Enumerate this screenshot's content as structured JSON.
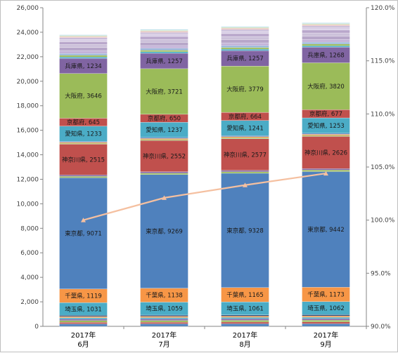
{
  "chart_data": {
    "type": "bar",
    "stacked": true,
    "categories": [
      {
        "line1": "2017年",
        "line2": "6月"
      },
      {
        "line1": "2017年",
        "line2": "7月"
      },
      {
        "line1": "2017年",
        "line2": "8月"
      },
      {
        "line1": "2017年",
        "line2": "9月"
      }
    ],
    "y_left": {
      "min": 0,
      "max": 26000,
      "step": 2000,
      "ticks": [
        "0",
        "2,000",
        "4,000",
        "6,000",
        "8,000",
        "10,000",
        "12,000",
        "14,000",
        "16,000",
        "18,000",
        "20,000",
        "22,000",
        "24,000",
        "26,000"
      ]
    },
    "y_right": {
      "min": 90,
      "max": 120,
      "step": 5,
      "ticks": [
        "90.0%",
        "95.0%",
        "100.0%",
        "105.0%",
        "110.0%",
        "115.0%",
        "120.0%"
      ]
    },
    "grid": false,
    "legend": "none",
    "segments": [
      {
        "name": "",
        "color": "#4f81bd",
        "values": [
          200,
          205,
          210,
          215
        ],
        "label": false
      },
      {
        "name": "",
        "color": "#c0504d",
        "values": [
          130,
          135,
          138,
          140
        ],
        "label": false
      },
      {
        "name": "",
        "color": "#9bbb59",
        "values": [
          140,
          140,
          142,
          145
        ],
        "label": false
      },
      {
        "name": "",
        "color": "#8064a2",
        "values": [
          120,
          122,
          124,
          125
        ],
        "label": false
      },
      {
        "name": "",
        "color": "#4bacc6",
        "values": [
          110,
          112,
          114,
          116
        ],
        "label": false
      },
      {
        "name": "",
        "color": "#f79646",
        "values": [
          100,
          102,
          104,
          106
        ],
        "label": false
      },
      {
        "name": "",
        "color": "#2c4d75",
        "values": [
          100,
          101,
          103,
          104
        ],
        "label": false
      },
      {
        "name": "埼玉県",
        "color": "#4bacc6",
        "values": [
          1031,
          1059,
          1061,
          1062
        ],
        "label": true
      },
      {
        "name": "千葉県",
        "color": "#f79646",
        "values": [
          1119,
          1138,
          1165,
          1173
        ],
        "label": true
      },
      {
        "name": "東京都",
        "color": "#4f81bd",
        "values": [
          9071,
          9269,
          9328,
          9442
        ],
        "label": true
      },
      {
        "name": "",
        "color": "#9bbb59",
        "values": [
          120,
          122,
          124,
          126
        ],
        "label": false
      },
      {
        "name": "",
        "color": "#8064a2",
        "values": [
          110,
          112,
          114,
          116
        ],
        "label": false
      },
      {
        "name": "神奈川県",
        "color": "#c0504d",
        "values": [
          2515,
          2552,
          2577,
          2626
        ],
        "label": true
      },
      {
        "name": "",
        "color": "#9bbb59",
        "values": [
          80,
          82,
          84,
          86
        ],
        "label": false
      },
      {
        "name": "",
        "color": "#f79646",
        "values": [
          80,
          82,
          84,
          86
        ],
        "label": false
      },
      {
        "name": "",
        "color": "#4f81bd",
        "values": [
          80,
          82,
          84,
          86
        ],
        "label": false
      },
      {
        "name": "愛知県",
        "color": "#4bacc6",
        "values": [
          1233,
          1237,
          1241,
          1253
        ],
        "label": true
      },
      {
        "name": "京都府",
        "color": "#c0504d",
        "values": [
          645,
          650,
          664,
          677
        ],
        "label": true
      },
      {
        "name": "大阪府",
        "color": "#9bbb59",
        "values": [
          3646,
          3721,
          3779,
          3820
        ],
        "label": true
      },
      {
        "name": "兵庫県",
        "color": "#8064a2",
        "values": [
          1234,
          1257,
          1257,
          1268
        ],
        "label": true
      },
      {
        "name": "",
        "color": "#4bacc6",
        "values": [
          120,
          122,
          124,
          126
        ],
        "label": false
      },
      {
        "name": "",
        "color": "#9bbb59",
        "values": [
          130,
          132,
          134,
          136
        ],
        "label": false
      },
      {
        "name": "",
        "color": "#95b3d7",
        "values": [
          150,
          152,
          154,
          156
        ],
        "label": false
      },
      {
        "name": "",
        "color": "#c3b3d8",
        "values": [
          220,
          222,
          224,
          226
        ],
        "label": false
      },
      {
        "name": "",
        "color": "#b7a6c9",
        "values": [
          260,
          262,
          264,
          266
        ],
        "label": false
      },
      {
        "name": "",
        "color": "#ccc1da",
        "values": [
          250,
          252,
          254,
          256
        ],
        "label": false
      },
      {
        "name": "",
        "color": "#b9a7cb",
        "values": [
          230,
          232,
          234,
          236
        ],
        "label": false
      },
      {
        "name": "",
        "color": "#d9cfe6",
        "values": [
          180,
          182,
          184,
          186
        ],
        "label": false
      },
      {
        "name": "",
        "color": "#c9bcd9",
        "values": [
          150,
          152,
          154,
          156
        ],
        "label": false
      },
      {
        "name": "",
        "color": "#e6b9b8",
        "values": [
          90,
          92,
          94,
          96
        ],
        "label": false
      },
      {
        "name": "",
        "color": "#d7e4bd",
        "values": [
          80,
          82,
          84,
          86
        ],
        "label": false
      },
      {
        "name": "",
        "color": "#b7dee8",
        "values": [
          70,
          72,
          74,
          76
        ],
        "label": false
      }
    ],
    "line": {
      "name": "",
      "color": "#f5c0a0",
      "axis": "right",
      "values": [
        100.0,
        102.1,
        103.3,
        104.4
      ]
    }
  }
}
